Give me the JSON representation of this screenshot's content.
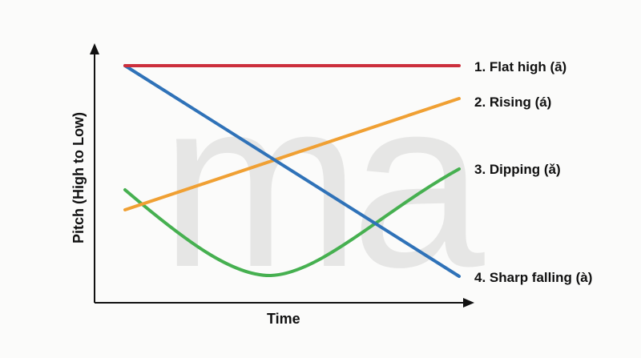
{
  "watermark_text": "ma",
  "axes": {
    "x_title": "Time",
    "y_title": "Pitch (High to Low)"
  },
  "colors": {
    "flat_high": "#cc2f3c",
    "rising": "#f0a033",
    "dipping": "#46b050",
    "sharp_falling": "#2f72b8",
    "axis": "#111111"
  },
  "tones": [
    {
      "label": "1. Flat high (ā)",
      "shape": "flat",
      "pitch_start": "high",
      "pitch_end": "high",
      "color_key": "flat_high"
    },
    {
      "label": "2. Rising (á)",
      "shape": "rising",
      "pitch_start": "mid-low",
      "pitch_end": "high",
      "color_key": "rising"
    },
    {
      "label": "3. Dipping (ǎ)",
      "shape": "dipping",
      "pitch_start": "mid-low",
      "pitch_end": "mid-high",
      "color_key": "dipping"
    },
    {
      "label": "4. Sharp falling (à)",
      "shape": "falling",
      "pitch_start": "high",
      "pitch_end": "low",
      "color_key": "sharp_falling"
    }
  ]
}
